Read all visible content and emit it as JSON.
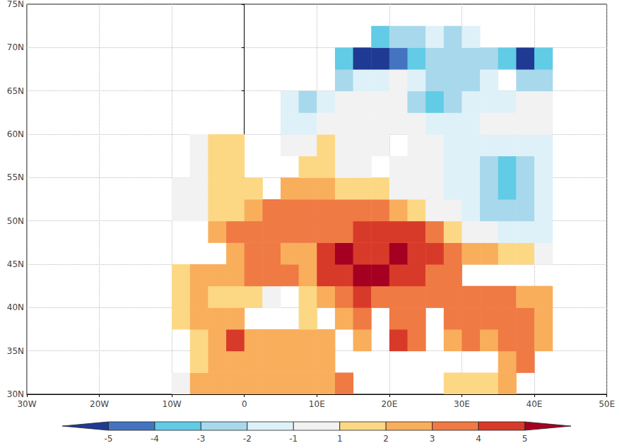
{
  "chart_data": {
    "type": "heatmap",
    "xlim": [
      -30,
      50
    ],
    "ylim": [
      30,
      75
    ],
    "xticks": [
      {
        "value": -30,
        "label": "30W"
      },
      {
        "value": -20,
        "label": "20W"
      },
      {
        "value": -10,
        "label": "10W"
      },
      0,
      {
        "value": 10,
        "label": "10E"
      },
      {
        "value": 20,
        "label": "20E"
      },
      {
        "value": 30,
        "label": "30E"
      },
      {
        "value": 40,
        "label": "40E"
      },
      {
        "value": 50,
        "label": "50E"
      }
    ],
    "yticks": [
      {
        "value": 30,
        "label": "30N"
      },
      {
        "value": 35,
        "label": "35N"
      },
      {
        "value": 40,
        "label": "40N"
      },
      {
        "value": 45,
        "label": "45N"
      },
      {
        "value": 50,
        "label": "50N"
      },
      {
        "value": 55,
        "label": "55N"
      },
      {
        "value": 60,
        "label": "60N"
      },
      {
        "value": 65,
        "label": "65N"
      },
      {
        "value": 70,
        "label": "70N"
      },
      {
        "value": 75,
        "label": "75N"
      }
    ],
    "grid": true,
    "cell_size": 2.5,
    "color_ticks": [
      -5,
      -4,
      -3,
      -2,
      -1,
      1,
      2,
      3,
      4,
      5
    ],
    "colors": [
      "#1f3a93",
      "#4474bf",
      "#62cbe6",
      "#a8d8ec",
      "#dff1f8",
      "#f2f2f2",
      "#fdd884",
      "#f9ae5c",
      "#ef7a44",
      "#d83a2a",
      "#a50021"
    ],
    "cells": [
      [
        -10,
        30,
        0.5
      ],
      [
        -7.5,
        30,
        2
      ],
      [
        -5,
        30,
        2.5
      ],
      [
        -2.5,
        30,
        2.5
      ],
      [
        0,
        30,
        2
      ],
      [
        2.5,
        30,
        2
      ],
      [
        5,
        30,
        2.5
      ],
      [
        7.5,
        30,
        2.5
      ],
      [
        10,
        30,
        2.5
      ],
      [
        12.5,
        30,
        3.5
      ],
      [
        27.5,
        30,
        1.5
      ],
      [
        30,
        30,
        1.5
      ],
      [
        32.5,
        30,
        1.5
      ],
      [
        35,
        30,
        2
      ],
      [
        -7.5,
        32.5,
        1.5
      ],
      [
        -5,
        32.5,
        2.5
      ],
      [
        -2.5,
        32.5,
        2
      ],
      [
        0,
        32.5,
        2.5
      ],
      [
        2.5,
        32.5,
        2.5
      ],
      [
        5,
        32.5,
        2.5
      ],
      [
        7.5,
        32.5,
        2
      ],
      [
        10,
        32.5,
        2.5
      ],
      [
        35,
        32.5,
        2.5
      ],
      [
        37.5,
        32.5,
        3
      ],
      [
        -7.5,
        35,
        1.5
      ],
      [
        -5,
        35,
        2
      ],
      [
        -2.5,
        35,
        4.5
      ],
      [
        0,
        35,
        2
      ],
      [
        2.5,
        35,
        2
      ],
      [
        5,
        35,
        2
      ],
      [
        7.5,
        35,
        2
      ],
      [
        10,
        35,
        2.5
      ],
      [
        15,
        35,
        2
      ],
      [
        20,
        35,
        4
      ],
      [
        22.5,
        35,
        3
      ],
      [
        27.5,
        35,
        2.5
      ],
      [
        30,
        35,
        3
      ],
      [
        32.5,
        35,
        2.5
      ],
      [
        35,
        35,
        3
      ],
      [
        37.5,
        35,
        3
      ],
      [
        40,
        35,
        2.5
      ],
      [
        -10,
        37.5,
        1.5
      ],
      [
        -7.5,
        37.5,
        2
      ],
      [
        -5,
        37.5,
        2
      ],
      [
        -2.5,
        37.5,
        2.5
      ],
      [
        7.5,
        37.5,
        1.5
      ],
      [
        12.5,
        37.5,
        2
      ],
      [
        15,
        37.5,
        3.5
      ],
      [
        20,
        37.5,
        3
      ],
      [
        22.5,
        37.5,
        3
      ],
      [
        27.5,
        37.5,
        3
      ],
      [
        30,
        37.5,
        3
      ],
      [
        32.5,
        37.5,
        3
      ],
      [
        35,
        37.5,
        3
      ],
      [
        37.5,
        37.5,
        3
      ],
      [
        40,
        37.5,
        2
      ],
      [
        -10,
        40,
        1.5
      ],
      [
        -7.5,
        40,
        2
      ],
      [
        -5,
        40,
        1.5
      ],
      [
        -2.5,
        40,
        1.5
      ],
      [
        0,
        40,
        1
      ],
      [
        2.5,
        40,
        0.5
      ],
      [
        7.5,
        40,
        1.5
      ],
      [
        10,
        40,
        2.5
      ],
      [
        12.5,
        40,
        3
      ],
      [
        15,
        40,
        4
      ],
      [
        17.5,
        40,
        3
      ],
      [
        20,
        40,
        3.5
      ],
      [
        22.5,
        40,
        3.5
      ],
      [
        25,
        40,
        3
      ],
      [
        27.5,
        40,
        3
      ],
      [
        30,
        40,
        3
      ],
      [
        32.5,
        40,
        3
      ],
      [
        35,
        40,
        3
      ],
      [
        37.5,
        40,
        2.5
      ],
      [
        40,
        40,
        2
      ],
      [
        -10,
        42.5,
        1.5
      ],
      [
        -7.5,
        42.5,
        2
      ],
      [
        -5,
        42.5,
        2
      ],
      [
        -2.5,
        42.5,
        2.5
      ],
      [
        0,
        42.5,
        3
      ],
      [
        2.5,
        42.5,
        3
      ],
      [
        5,
        42.5,
        3
      ],
      [
        7.5,
        42.5,
        2.5
      ],
      [
        10,
        42.5,
        4
      ],
      [
        12.5,
        42.5,
        4.5
      ],
      [
        15,
        42.5,
        5.5
      ],
      [
        17.5,
        42.5,
        5
      ],
      [
        20,
        42.5,
        4.5
      ],
      [
        22.5,
        42.5,
        4
      ],
      [
        25,
        42.5,
        3.5
      ],
      [
        27.5,
        42.5,
        3
      ],
      [
        -2.5,
        45,
        2.5
      ],
      [
        0,
        45,
        3
      ],
      [
        2.5,
        45,
        3
      ],
      [
        5,
        45,
        2.5
      ],
      [
        7.5,
        45,
        2
      ],
      [
        10,
        45,
        4
      ],
      [
        12.5,
        45,
        5
      ],
      [
        15,
        45,
        4.5
      ],
      [
        17.5,
        45,
        4.5
      ],
      [
        20,
        45,
        5.5
      ],
      [
        22.5,
        45,
        4.5
      ],
      [
        25,
        45,
        4
      ],
      [
        27.5,
        45,
        3
      ],
      [
        30,
        45,
        2.5
      ],
      [
        32.5,
        45,
        2
      ],
      [
        35,
        45,
        1.5
      ],
      [
        37.5,
        45,
        1
      ],
      [
        40,
        45,
        0.5
      ],
      [
        -5,
        47.5,
        2
      ],
      [
        -2.5,
        47.5,
        3
      ],
      [
        0,
        47.5,
        3
      ],
      [
        2.5,
        47.5,
        3.5
      ],
      [
        5,
        47.5,
        3
      ],
      [
        7.5,
        47.5,
        3
      ],
      [
        10,
        47.5,
        3
      ],
      [
        12.5,
        47.5,
        3.5
      ],
      [
        15,
        47.5,
        4
      ],
      [
        17.5,
        47.5,
        4.5
      ],
      [
        20,
        47.5,
        4.5
      ],
      [
        22.5,
        47.5,
        4
      ],
      [
        25,
        47.5,
        3
      ],
      [
        27.5,
        47.5,
        1.5
      ],
      [
        30,
        47.5,
        0.5
      ],
      [
        32.5,
        47.5,
        -0.5
      ],
      [
        35,
        47.5,
        -1.5
      ],
      [
        37.5,
        47.5,
        -1.5
      ],
      [
        40,
        47.5,
        -1.5
      ],
      [
        -10,
        50,
        0.5
      ],
      [
        -7.5,
        50,
        0.5
      ],
      [
        -5,
        50,
        1.5
      ],
      [
        -2.5,
        50,
        1.5
      ],
      [
        0,
        50,
        2
      ],
      [
        2.5,
        50,
        3
      ],
      [
        5,
        50,
        3
      ],
      [
        7.5,
        50,
        3
      ],
      [
        10,
        50,
        3
      ],
      [
        12.5,
        50,
        3
      ],
      [
        15,
        50,
        3
      ],
      [
        17.5,
        50,
        3
      ],
      [
        20,
        50,
        2.5
      ],
      [
        22.5,
        50,
        1.5
      ],
      [
        25,
        50,
        0
      ],
      [
        27.5,
        50,
        -1
      ],
      [
        30,
        50,
        -1.5
      ],
      [
        32.5,
        50,
        -2.5
      ],
      [
        35,
        50,
        -2.5
      ],
      [
        37.5,
        50,
        -2.5
      ],
      [
        40,
        50,
        -1.5
      ],
      [
        -10,
        52.5,
        0.5
      ],
      [
        -7.5,
        52.5,
        0.5
      ],
      [
        -5,
        52.5,
        1.5
      ],
      [
        -2.5,
        52.5,
        1.5
      ],
      [
        0,
        52.5,
        1.5
      ],
      [
        5,
        52.5,
        2
      ],
      [
        7.5,
        52.5,
        2
      ],
      [
        10,
        52.5,
        2
      ],
      [
        12.5,
        52.5,
        1.5
      ],
      [
        15,
        52.5,
        1
      ],
      [
        17.5,
        52.5,
        1
      ],
      [
        20,
        52.5,
        0
      ],
      [
        22.5,
        52.5,
        -0.5
      ],
      [
        25,
        52.5,
        -1
      ],
      [
        27.5,
        52.5,
        -1.5
      ],
      [
        30,
        52.5,
        -2
      ],
      [
        32.5,
        52.5,
        -2.5
      ],
      [
        35,
        52.5,
        -3.5
      ],
      [
        37.5,
        52.5,
        -2.5
      ],
      [
        40,
        52.5,
        -1.5
      ],
      [
        -7.5,
        55,
        0.5
      ],
      [
        -5,
        55,
        1.5
      ],
      [
        -2.5,
        55,
        1.5
      ],
      [
        7.5,
        55,
        1
      ],
      [
        10,
        55,
        1
      ],
      [
        12.5,
        55,
        0.5
      ],
      [
        15,
        55,
        0
      ],
      [
        20,
        55,
        0
      ],
      [
        22.5,
        55,
        -0.5
      ],
      [
        25,
        55,
        -1
      ],
      [
        27.5,
        55,
        -1.5
      ],
      [
        30,
        55,
        -2
      ],
      [
        32.5,
        55,
        -3
      ],
      [
        35,
        55,
        -3.5
      ],
      [
        37.5,
        55,
        -2.5
      ],
      [
        40,
        55,
        -1.5
      ],
      [
        -7.5,
        57.5,
        0.5
      ],
      [
        -5,
        57.5,
        1.5
      ],
      [
        -2.5,
        57.5,
        1
      ],
      [
        5,
        57.5,
        0.5
      ],
      [
        7.5,
        57.5,
        0.5
      ],
      [
        10,
        57.5,
        1.5
      ],
      [
        12.5,
        57.5,
        0
      ],
      [
        15,
        57.5,
        0
      ],
      [
        17.5,
        57.5,
        0
      ],
      [
        22.5,
        57.5,
        -0.5
      ],
      [
        25,
        57.5,
        -1
      ],
      [
        27.5,
        57.5,
        -1.5
      ],
      [
        30,
        57.5,
        -1.5
      ],
      [
        32.5,
        57.5,
        -2
      ],
      [
        35,
        57.5,
        -2
      ],
      [
        37.5,
        57.5,
        -2
      ],
      [
        40,
        57.5,
        -1.5
      ],
      [
        5,
        60,
        -1.5
      ],
      [
        7.5,
        60,
        -1.5
      ],
      [
        10,
        60,
        0
      ],
      [
        12.5,
        60,
        -0.5
      ],
      [
        15,
        60,
        -0.5
      ],
      [
        17.5,
        60,
        -0.5
      ],
      [
        20,
        60,
        -1
      ],
      [
        22.5,
        60,
        -1
      ],
      [
        25,
        60,
        -1.5
      ],
      [
        27.5,
        60,
        -1.5
      ],
      [
        30,
        60,
        -1.5
      ],
      [
        32.5,
        60,
        -1
      ],
      [
        35,
        60,
        -1
      ],
      [
        37.5,
        60,
        -1
      ],
      [
        40,
        60,
        -1
      ],
      [
        5,
        62.5,
        -1.5
      ],
      [
        7.5,
        62.5,
        -2.5
      ],
      [
        10,
        62.5,
        -1.5
      ],
      [
        12.5,
        62.5,
        -0.5
      ],
      [
        15,
        62.5,
        -0.5
      ],
      [
        17.5,
        62.5,
        -0.5
      ],
      [
        20,
        62.5,
        -1
      ],
      [
        22.5,
        62.5,
        -2.5
      ],
      [
        25,
        62.5,
        -3.5
      ],
      [
        27.5,
        62.5,
        -3
      ],
      [
        30,
        62.5,
        -2
      ],
      [
        32.5,
        62.5,
        -1.5
      ],
      [
        35,
        62.5,
        -1.5
      ],
      [
        37.5,
        62.5,
        -1
      ],
      [
        40,
        62.5,
        -0.5
      ],
      [
        12.5,
        65,
        -2.5
      ],
      [
        15,
        65,
        -2
      ],
      [
        17.5,
        65,
        -1.5
      ],
      [
        20,
        65,
        -1
      ],
      [
        22.5,
        65,
        -1.5
      ],
      [
        25,
        65,
        -2.5
      ],
      [
        27.5,
        65,
        -2.5
      ],
      [
        30,
        65,
        -2.5
      ],
      [
        32.5,
        65,
        -2
      ],
      [
        37.5,
        65,
        -2.5
      ],
      [
        40,
        65,
        -3
      ],
      [
        12.5,
        67.5,
        -3.5
      ],
      [
        15,
        67.5,
        -5.5
      ],
      [
        17.5,
        67.5,
        -5.5
      ],
      [
        20,
        67.5,
        -4.5
      ],
      [
        22.5,
        67.5,
        -3.5
      ],
      [
        25,
        67.5,
        -3
      ],
      [
        27.5,
        67.5,
        -2.5
      ],
      [
        30,
        67.5,
        -3
      ],
      [
        32.5,
        67.5,
        -3
      ],
      [
        35,
        67.5,
        -3.5
      ],
      [
        37.5,
        67.5,
        -5.5
      ],
      [
        40,
        67.5,
        -3.5
      ],
      [
        17.5,
        70,
        -3.5
      ],
      [
        20,
        70,
        -3
      ],
      [
        22.5,
        70,
        -2.5
      ],
      [
        25,
        70,
        -2
      ],
      [
        27.5,
        70,
        -2.5
      ],
      [
        30,
        70,
        -2
      ]
    ]
  }
}
